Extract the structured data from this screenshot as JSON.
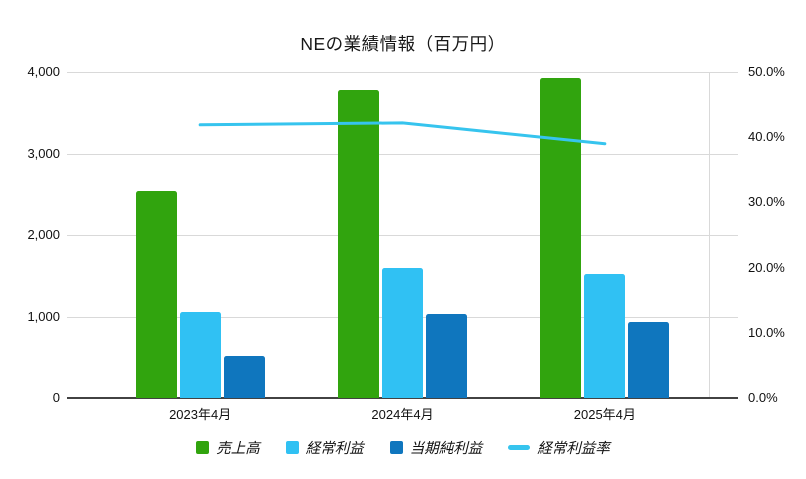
{
  "title": "NEの業績情報（百万円）",
  "chart_data": {
    "type": "bar",
    "title": "NEの業績情報（百万円）",
    "categories": [
      "2023年4月",
      "2024年4月",
      "2025年4月"
    ],
    "series": [
      {
        "name": "売上高",
        "key": "sales",
        "type": "bar",
        "axis": "left",
        "color": "#31a40e",
        "values": [
          2540,
          3780,
          3930
        ]
      },
      {
        "name": "経常利益",
        "key": "ordinary-profit",
        "type": "bar",
        "axis": "left",
        "color": "#30c1f3",
        "values": [
          1050,
          1590,
          1520
        ]
      },
      {
        "name": "当期純利益",
        "key": "net-profit",
        "type": "bar",
        "axis": "left",
        "color": "#0f76be",
        "values": [
          520,
          1030,
          930
        ]
      },
      {
        "name": "経常利益率",
        "key": "ordinary-profit-margin",
        "type": "line",
        "axis": "right",
        "color": "#36c4ee",
        "values": [
          41.9,
          42.2,
          39.0
        ]
      }
    ],
    "left_axis": {
      "min": 0,
      "max": 4000,
      "tick_labels": [
        "0",
        "1,000",
        "2,000",
        "3,000",
        "4,000"
      ]
    },
    "right_axis": {
      "min": 0,
      "max": 50,
      "tick_labels": [
        "0.0%",
        "10.0%",
        "20.0%",
        "30.0%",
        "40.0%",
        "50.0%"
      ]
    },
    "grid": true,
    "legend_position": "bottom",
    "background": "#ffffff",
    "grid_color": "#d9d9d9",
    "axis_line_color": "#424242"
  }
}
